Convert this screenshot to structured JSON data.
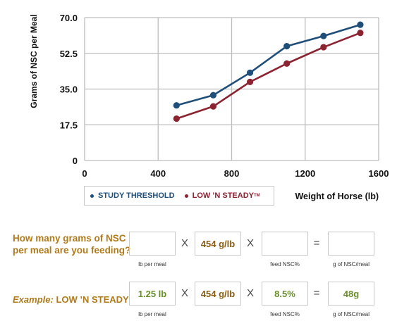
{
  "chart_data": {
    "type": "line",
    "ylabel": "Grams of NSC per Meal",
    "xlabel": "Weight of Horse (lb)",
    "xlim": [
      0,
      1600
    ],
    "ylim": [
      0,
      70
    ],
    "xticks": [
      0,
      400,
      800,
      1200,
      1600
    ],
    "xtick_labels": [
      "0",
      "400",
      "800",
      "1200",
      "1600"
    ],
    "yticks": [
      0,
      17.5,
      35,
      52.5,
      70
    ],
    "ytick_labels": [
      "0",
      "17.5",
      "35.0",
      "52.5",
      "70.0"
    ],
    "grid": true,
    "series": [
      {
        "name": "STUDY THRESHOLD",
        "color": "#1f4e79",
        "x": [
          500,
          700,
          900,
          1100,
          1300,
          1500
        ],
        "y": [
          27,
          32,
          43,
          56,
          61,
          66.5
        ]
      },
      {
        "name": "LOW ’N STEADY",
        "color": "#8b2331",
        "x": [
          500,
          700,
          900,
          1100,
          1300,
          1500
        ],
        "y": [
          20.5,
          26.5,
          38.5,
          47.5,
          55.5,
          62.5
        ]
      }
    ]
  },
  "legend": {
    "study_label": "STUDY THRESHOLD",
    "low_label": "LOW ’N STEADY",
    "low_tm": "TM"
  },
  "calculator": {
    "question": "How many grams of NSC per meal are you feeding?",
    "multiply": "X",
    "equals": "=",
    "constant": "454 g/lb",
    "caption_lb": "lb per meal",
    "caption_nsc": "feed NSC%",
    "caption_result": "g of NSC/meal"
  },
  "example": {
    "label_prefix": "Example:",
    "label_product": "LOW ’N STEADY",
    "lb": "1.25 lb",
    "constant": "454 g/lb",
    "nsc": "8.5%",
    "result": "48g"
  },
  "colors": {
    "study": "#1f4e79",
    "low": "#8b2331",
    "gold": "#b07a1a",
    "green": "#6a8f2a"
  }
}
